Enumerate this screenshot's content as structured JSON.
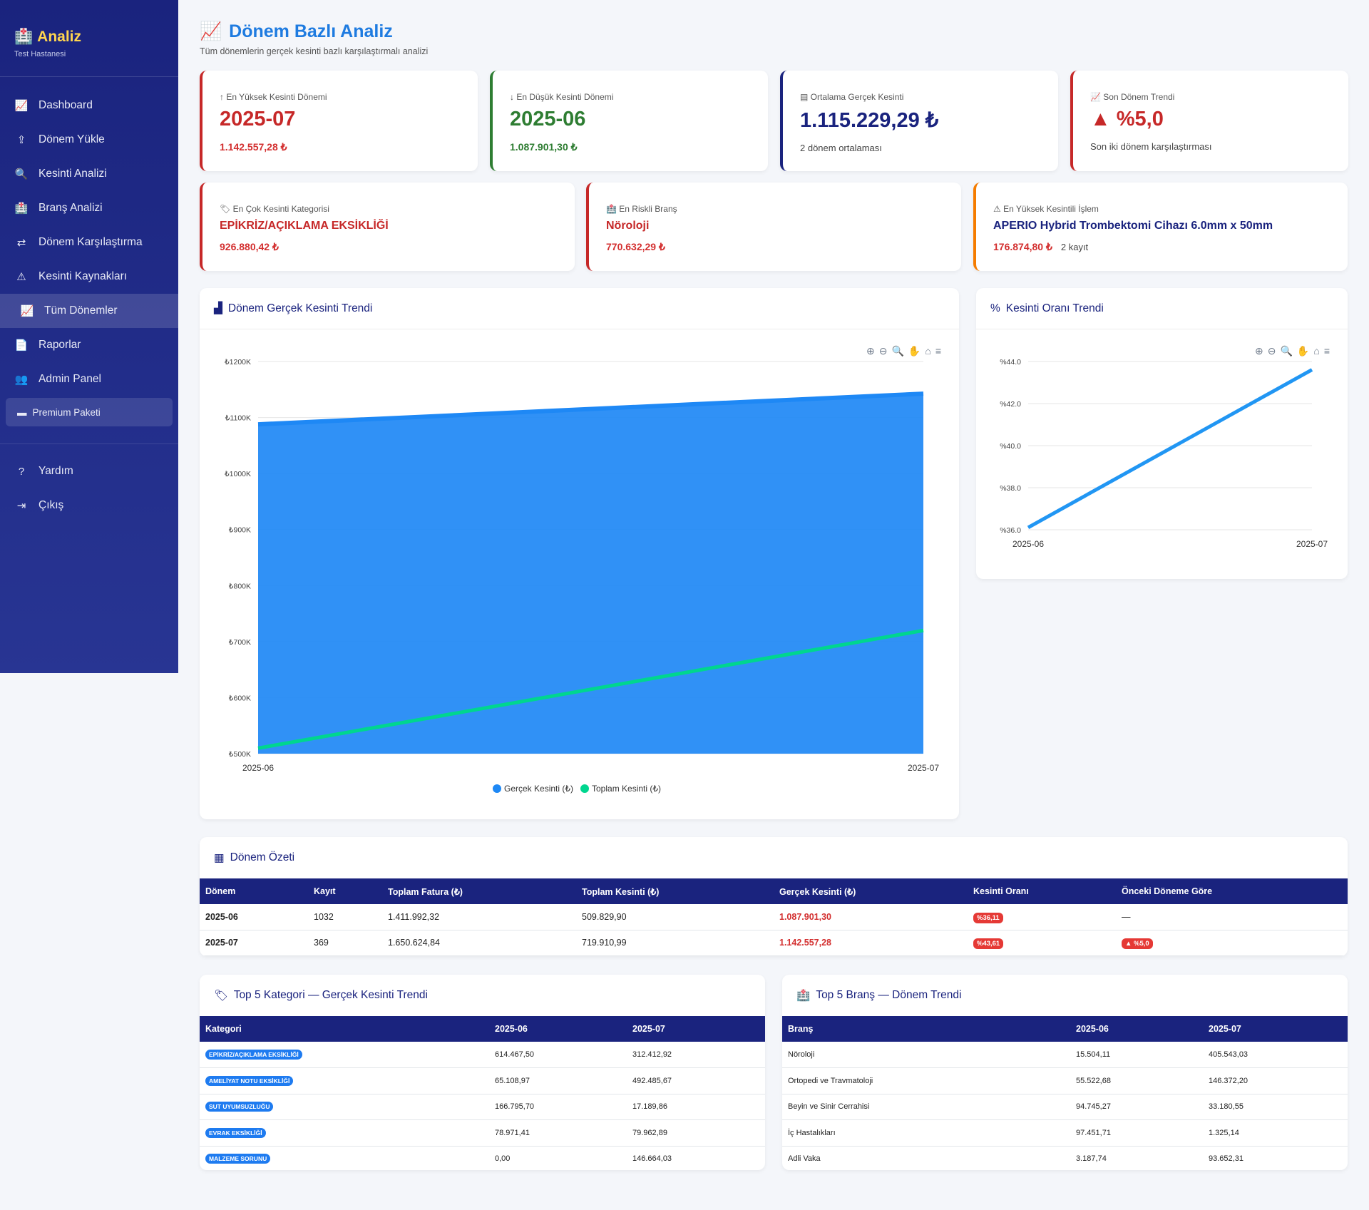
{
  "sidebar": {
    "brand": "Analiz",
    "hospital": "Test Hastanesi",
    "items": [
      {
        "label": "Dashboard",
        "icon": "chart-line-icon"
      },
      {
        "label": "Dönem Yükle",
        "icon": "upload-icon"
      },
      {
        "label": "Kesinti Analizi",
        "icon": "search-icon"
      },
      {
        "label": "Branş Analizi",
        "icon": "hospital-icon"
      },
      {
        "label": "Dönem Karşılaştırma",
        "icon": "exchange-icon"
      },
      {
        "label": "Kesinti Kaynakları",
        "icon": "warning-icon"
      },
      {
        "label": "Tüm Dönemler",
        "icon": "chart-line-icon",
        "active": true
      },
      {
        "label": "Raporlar",
        "icon": "pdf-icon"
      },
      {
        "label": "Admin Panel",
        "icon": "users-cog-icon"
      }
    ],
    "premium": "Premium Paketi",
    "help": "Yardım",
    "logout": "Çıkış"
  },
  "header": {
    "title": "Dönem Bazlı Analiz",
    "subtitle": "Tüm dönemlerin gerçek kesinti bazlı karşılaştırmalı analizi"
  },
  "kpis": [
    {
      "label": "En Yüksek Kesinti Dönemi",
      "value": "2025-07",
      "sub": "1.142.557,28 ₺",
      "color": "#c62828"
    },
    {
      "label": "En Düşük Kesinti Dönemi",
      "value": "2025-06",
      "sub": "1.087.901,30 ₺",
      "color": "#2e7d32"
    },
    {
      "label": "Ortalama Gerçek Kesinti",
      "value": "1.115.229,29 ₺",
      "note": "2 dönem ortalaması",
      "color": "#1a237e"
    },
    {
      "label": "Son Dönem Trendi",
      "value": "▲ %5,0",
      "note": "Son iki dönem karşılaştırması",
      "color": "#c62828"
    }
  ],
  "kpis2": [
    {
      "label": "En Çok Kesinti Kategorisi",
      "value": "EPİKRİZ/AÇIKLAMA EKSİKLİĞİ",
      "amount": "926.880,42 ₺"
    },
    {
      "label": "En Riskli Branş",
      "value": "Nöroloji",
      "amount": "770.632,29 ₺"
    },
    {
      "label": "En Yüksek Kesintili İşlem",
      "value": "APERIO Hybrid Trombektomi Cihazı 6.0mm x 50mm",
      "amount": "176.874,80 ₺",
      "count": "2 kayıt"
    }
  ],
  "chart_data": [
    {
      "type": "area",
      "title": "Dönem Gerçek Kesinti Trendi",
      "categories": [
        "2025-06",
        "2025-07"
      ],
      "series": [
        {
          "name": "Gerçek Kesinti (₺)",
          "values": [
            1087901.3,
            1142557.28
          ],
          "color": "#1e88f5"
        },
        {
          "name": "Toplam Kesinti (₺)",
          "values": [
            509829.9,
            719910.99
          ],
          "color": "#00d68f"
        }
      ],
      "ylim": [
        500000,
        1200000
      ],
      "yticks": [
        "₺1200K",
        "₺1100K",
        "₺1000K",
        "₺900K",
        "₺800K",
        "₺700K",
        "₺600K",
        "₺500K"
      ],
      "legend": "bottom"
    },
    {
      "type": "line",
      "title": "Kesinti Oranı Trendi",
      "categories": [
        "2025-06",
        "2025-07"
      ],
      "series": [
        {
          "name": "Kesinti Oranı",
          "values": [
            36.11,
            43.61
          ],
          "color": "#2196f3"
        }
      ],
      "ylim": [
        36,
        44
      ],
      "yticks": [
        "%44.0",
        "%42.0",
        "%40.0",
        "%38.0",
        "%36.0"
      ]
    }
  ],
  "summary": {
    "title": "Dönem Özeti",
    "headers": [
      "Dönem",
      "Kayıt",
      "Toplam Fatura (₺)",
      "Toplam Kesinti (₺)",
      "Gerçek Kesinti (₺)",
      "Kesinti Oranı",
      "Önceki Döneme Göre"
    ],
    "rows": [
      [
        "2025-06",
        "1032",
        "1.411.992,32",
        "509.829,90",
        "1.087.901,30",
        "%36,11",
        "—"
      ],
      [
        "2025-07",
        "369",
        "1.650.624,84",
        "719.910,99",
        "1.142.557,28",
        "%43,61",
        "▲ %5,0"
      ]
    ]
  },
  "top_categories": {
    "title": "Top 5 Kategori — Gerçek Kesinti Trendi",
    "headers": [
      "Kategori",
      "2025-06",
      "2025-07"
    ],
    "rows": [
      [
        "EPİKRİZ/AÇIKLAMA EKSİKLİĞİ",
        "614.467,50",
        "312.412,92"
      ],
      [
        "AMELİYAT NOTU EKSİKLİĞİ",
        "65.108,97",
        "492.485,67"
      ],
      [
        "SUT UYUMSUZLUĞU",
        "166.795,70",
        "17.189,86"
      ],
      [
        "EVRAK EKSİKLİĞİ",
        "78.971,41",
        "79.962,89"
      ],
      [
        "MALZEME SORUNU",
        "0,00",
        "146.664,03"
      ]
    ]
  },
  "top_branches": {
    "title": "Top 5 Branş — Dönem Trendi",
    "headers": [
      "Branş",
      "2025-06",
      "2025-07"
    ],
    "rows": [
      [
        "Nöroloji",
        "15.504,11",
        "405.543,03"
      ],
      [
        "Ortopedi ve Travmatoloji",
        "55.522,68",
        "146.372,20"
      ],
      [
        "Beyin ve Sinir Cerrahisi",
        "94.745,27",
        "33.180,55"
      ],
      [
        "İç Hastalıkları",
        "97.451,71",
        "1.325,14"
      ],
      [
        "Adli Vaka",
        "3.187,74",
        "93.652,31"
      ]
    ]
  }
}
